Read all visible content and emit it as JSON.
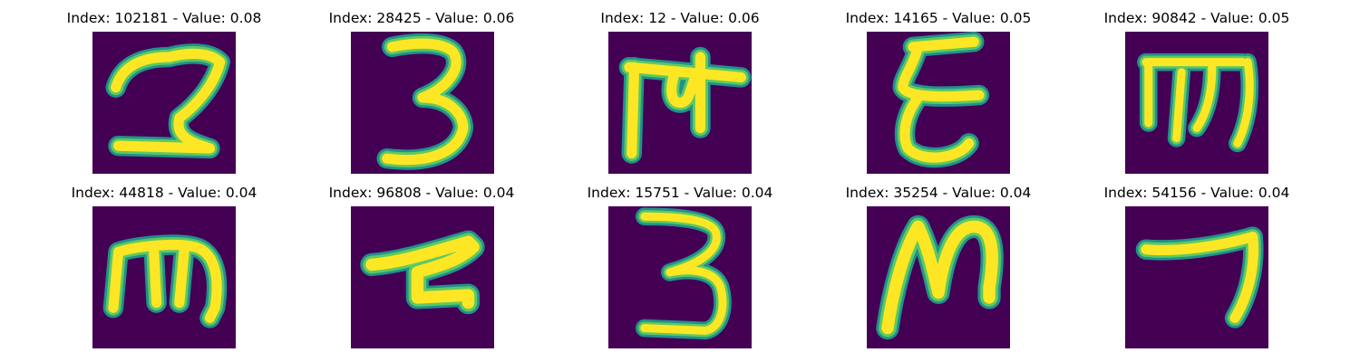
{
  "colors": {
    "background": "#440154",
    "stroke_core": "#fde725",
    "stroke_edge": "#5ec962",
    "stroke_outer": "#21918c"
  },
  "panels": [
    {
      "title": "Index: 102181 - Value: 0.08",
      "glyph": "digit-two-like"
    },
    {
      "title": "Index: 28425 - Value: 0.06",
      "glyph": "digit-three"
    },
    {
      "title": "Index: 12 - Value: 0.06",
      "glyph": "devanagari-like-glyph"
    },
    {
      "title": "Index: 14165 - Value: 0.05",
      "glyph": "epsilon-like-glyph"
    },
    {
      "title": "Index: 90842 - Value: 0.05",
      "glyph": "m-like-glyph"
    },
    {
      "title": "Index: 44818 - Value: 0.04",
      "glyph": "m-like-glyph"
    },
    {
      "title": "Index: 96808 - Value: 0.04",
      "glyph": "hook-glyph"
    },
    {
      "title": "Index: 15751 - Value: 0.04",
      "glyph": "digit-three"
    },
    {
      "title": "Index: 35254 - Value: 0.04",
      "glyph": "loop-glyph"
    },
    {
      "title": "Index: 54156 - Value: 0.04",
      "glyph": "digit-seven-like"
    }
  ]
}
